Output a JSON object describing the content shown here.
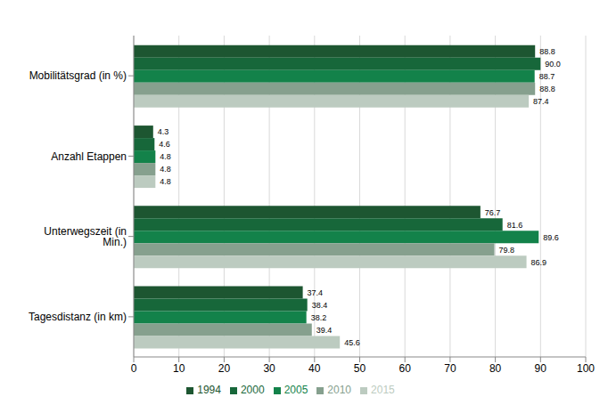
{
  "chart_data": {
    "type": "bar",
    "orientation": "horizontal",
    "categories": [
      "Mobilitätsgrad (in %)",
      "Anzahl Etappen",
      "Unterwegszeit (in Min.)",
      "Tagesdistanz (in km)"
    ],
    "series": [
      {
        "name": "1994",
        "color": "#1d5631",
        "values": [
          88.8,
          4.3,
          76.7,
          37.4
        ],
        "value_labels": [
          "88.8",
          "4.3",
          "76.7",
          "37.4"
        ]
      },
      {
        "name": "2000",
        "color": "#17673a",
        "values": [
          90.0,
          4.6,
          81.6,
          38.4
        ],
        "value_labels": [
          "90.0",
          "4.6",
          "81.6",
          "38.4"
        ]
      },
      {
        "name": "2005",
        "color": "#13824a",
        "values": [
          88.7,
          4.8,
          89.6,
          38.2
        ],
        "value_labels": [
          "88.7",
          "4.8",
          "89.6",
          "38.2"
        ]
      },
      {
        "name": "2010",
        "color": "#86a08e",
        "values": [
          88.8,
          4.8,
          79.8,
          39.4
        ],
        "value_labels": [
          "88.8",
          "4.8",
          "79.8",
          "39.4"
        ]
      },
      {
        "name": "2015",
        "color": "#bccbc0",
        "values": [
          87.4,
          4.8,
          86.9,
          45.6
        ],
        "value_labels": [
          "87.4",
          "4.8",
          "86.9",
          "45.6"
        ]
      }
    ],
    "xlim": [
      0,
      100
    ],
    "xticks": [
      0,
      10,
      20,
      30,
      40,
      50,
      60,
      70,
      80,
      90,
      100
    ],
    "grid": true,
    "data_labels": true,
    "legend": "bottom"
  }
}
